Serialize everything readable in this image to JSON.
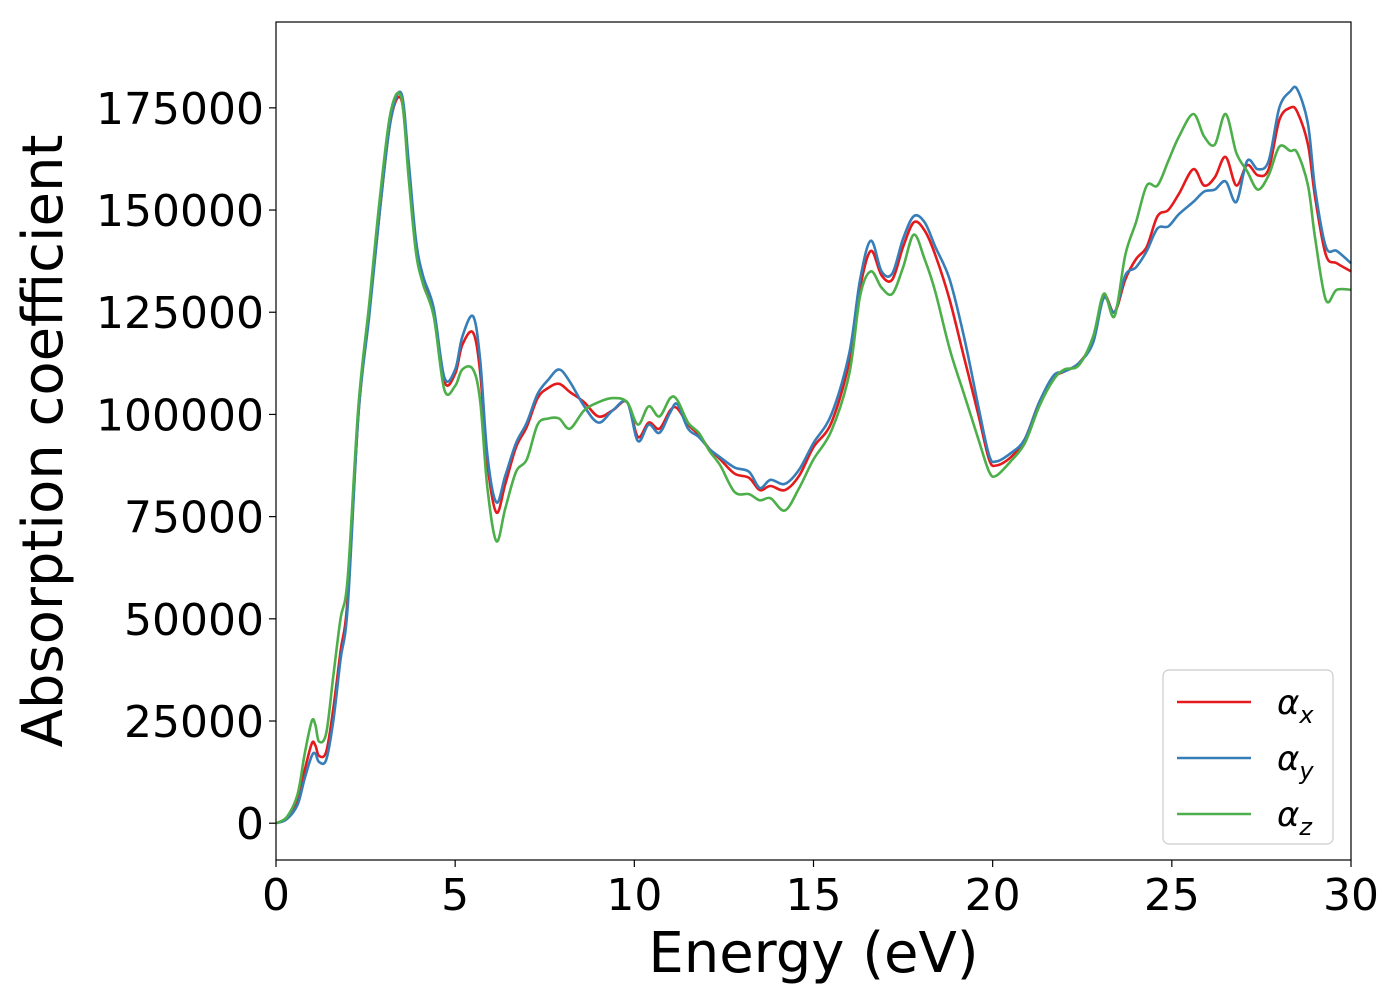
{
  "chart_data": {
    "type": "line",
    "title": "",
    "xlabel": "Energy (eV)",
    "ylabel": "Absorption coefficient",
    "xlim": [
      0,
      30
    ],
    "ylim": [
      -9000,
      196000
    ],
    "xticks": [
      0,
      5,
      10,
      15,
      20,
      25,
      30
    ],
    "yticks": [
      0,
      25000,
      50000,
      75000,
      100000,
      125000,
      150000,
      175000
    ],
    "grid": false,
    "legend_position": "lower-right",
    "series": [
      {
        "name": "α",
        "subscript": "x",
        "color": "#e41a1c",
        "x": [
          0,
          0.3,
          0.6,
          0.8,
          1.0,
          1.1,
          1.2,
          1.4,
          1.6,
          1.8,
          2.0,
          2.3,
          2.6,
          2.9,
          3.2,
          3.5,
          3.7,
          3.9,
          4.1,
          4.4,
          4.7,
          5.0,
          5.2,
          5.5,
          5.7,
          5.9,
          6.15,
          6.4,
          6.7,
          7.0,
          7.3,
          7.6,
          7.9,
          8.2,
          8.6,
          9.0,
          9.4,
          9.8,
          10.1,
          10.4,
          10.7,
          11.0,
          11.2,
          11.5,
          11.8,
          12.1,
          12.4,
          12.8,
          13.2,
          13.5,
          13.8,
          14.2,
          14.6,
          15.0,
          15.5,
          16.0,
          16.3,
          16.6,
          16.9,
          17.2,
          17.5,
          17.8,
          18.1,
          18.4,
          18.8,
          19.2,
          19.6,
          19.9,
          20.1,
          20.5,
          20.9,
          21.3,
          21.7,
          22.0,
          22.4,
          22.8,
          23.1,
          23.4,
          23.7,
          24.0,
          24.3,
          24.6,
          24.9,
          25.2,
          25.6,
          25.9,
          26.2,
          26.5,
          26.8,
          27.1,
          27.4,
          27.7,
          28.0,
          28.3,
          28.5,
          28.8,
          29.0,
          29.3,
          29.6,
          30.0
        ],
        "y": [
          0,
          1200,
          5500,
          13000,
          19500,
          19000,
          16500,
          17500,
          28000,
          42000,
          55000,
          100000,
          125000,
          150000,
          172000,
          177000,
          160000,
          142000,
          133000,
          125000,
          108000,
          110000,
          117000,
          120000,
          110000,
          88000,
          76000,
          83000,
          92000,
          97000,
          104000,
          106500,
          107500,
          105500,
          103000,
          99500,
          101000,
          103000,
          94500,
          98000,
          96500,
          101000,
          101500,
          97500,
          95000,
          91500,
          89000,
          85500,
          84500,
          81500,
          82500,
          81500,
          85000,
          92000,
          98000,
          113000,
          131000,
          140000,
          134000,
          133000,
          141000,
          147000,
          145000,
          139000,
          128000,
          114000,
          100000,
          89000,
          87500,
          89500,
          94000,
          103000,
          109000,
          110500,
          112500,
          118000,
          129000,
          125000,
          133000,
          138000,
          141000,
          148500,
          150000,
          154000,
          160000,
          156000,
          158000,
          163000,
          156000,
          161000,
          158500,
          160000,
          172000,
          175000,
          174000,
          166000,
          153000,
          139000,
          137000,
          135000
        ]
      },
      {
        "name": "α",
        "subscript": "y",
        "color": "#377eb8",
        "x": [
          0,
          0.3,
          0.6,
          0.8,
          1.0,
          1.1,
          1.2,
          1.4,
          1.6,
          1.8,
          2.0,
          2.3,
          2.6,
          2.9,
          3.2,
          3.5,
          3.7,
          3.9,
          4.1,
          4.4,
          4.7,
          5.0,
          5.2,
          5.5,
          5.7,
          5.9,
          6.15,
          6.4,
          6.7,
          7.0,
          7.3,
          7.6,
          7.9,
          8.2,
          8.6,
          9.0,
          9.4,
          9.8,
          10.1,
          10.4,
          10.7,
          11.0,
          11.2,
          11.5,
          11.8,
          12.1,
          12.4,
          12.8,
          13.2,
          13.5,
          13.8,
          14.2,
          14.6,
          15.0,
          15.5,
          16.0,
          16.3,
          16.6,
          16.9,
          17.2,
          17.5,
          17.8,
          18.1,
          18.4,
          18.8,
          19.2,
          19.6,
          19.9,
          20.1,
          20.5,
          20.9,
          21.3,
          21.7,
          22.0,
          22.4,
          22.8,
          23.1,
          23.4,
          23.7,
          24.0,
          24.3,
          24.6,
          24.9,
          25.2,
          25.6,
          25.9,
          26.2,
          26.5,
          26.8,
          27.1,
          27.4,
          27.7,
          28.0,
          28.3,
          28.5,
          28.8,
          29.0,
          29.3,
          29.6,
          30.0
        ],
        "y": [
          0,
          1000,
          4500,
          11000,
          16500,
          17000,
          15000,
          15500,
          25000,
          40000,
          53000,
          100000,
          124000,
          150000,
          172000,
          178500,
          162000,
          143000,
          134000,
          126000,
          109000,
          111000,
          119000,
          124000,
          113000,
          90000,
          78500,
          85000,
          93000,
          98000,
          105000,
          108500,
          111000,
          108000,
          102000,
          98000,
          101000,
          103000,
          93500,
          97500,
          95500,
          100500,
          102500,
          96500,
          94500,
          91500,
          89500,
          87000,
          86000,
          82000,
          84000,
          83000,
          86500,
          93000,
          100000,
          115000,
          133000,
          142500,
          135000,
          134500,
          143000,
          148500,
          147000,
          141000,
          133000,
          119000,
          102000,
          90000,
          88500,
          90500,
          94000,
          103000,
          109500,
          110500,
          112500,
          117500,
          128500,
          125000,
          134000,
          136000,
          140000,
          145500,
          146000,
          149000,
          152000,
          154500,
          155000,
          157000,
          152000,
          162000,
          160000,
          162000,
          175000,
          179000,
          179500,
          171000,
          155000,
          141000,
          140000,
          137000
        ]
      },
      {
        "name": "α",
        "subscript": "z",
        "color": "#4daf4a",
        "x": [
          0,
          0.3,
          0.6,
          0.8,
          1.0,
          1.1,
          1.2,
          1.4,
          1.6,
          1.8,
          2.0,
          2.3,
          2.6,
          2.9,
          3.2,
          3.5,
          3.7,
          3.9,
          4.1,
          4.4,
          4.7,
          5.0,
          5.2,
          5.5,
          5.7,
          5.9,
          6.15,
          6.4,
          6.7,
          7.0,
          7.3,
          7.6,
          7.9,
          8.2,
          8.6,
          9.0,
          9.4,
          9.8,
          10.1,
          10.4,
          10.7,
          11.0,
          11.2,
          11.5,
          11.8,
          12.1,
          12.4,
          12.8,
          13.2,
          13.5,
          13.8,
          14.2,
          14.6,
          15.0,
          15.5,
          16.0,
          16.3,
          16.6,
          16.9,
          17.2,
          17.5,
          17.8,
          18.1,
          18.4,
          18.8,
          19.2,
          19.6,
          19.9,
          20.1,
          20.5,
          20.9,
          21.3,
          21.7,
          22.0,
          22.4,
          22.8,
          23.1,
          23.4,
          23.7,
          24.0,
          24.3,
          24.6,
          24.9,
          25.2,
          25.6,
          25.9,
          26.2,
          26.5,
          26.8,
          27.1,
          27.4,
          27.7,
          28.0,
          28.3,
          28.5,
          28.8,
          29.0,
          29.3,
          29.6,
          30.0
        ],
        "y": [
          0,
          1500,
          7000,
          17000,
          25000,
          24000,
          20000,
          22000,
          36000,
          50000,
          60000,
          102000,
          127000,
          153000,
          174000,
          177500,
          158000,
          140000,
          132000,
          124000,
          106000,
          107000,
          111000,
          111000,
          103000,
          82000,
          69000,
          77000,
          86000,
          89000,
          97500,
          99000,
          99000,
          96500,
          101000,
          103000,
          104000,
          103000,
          97500,
          102000,
          99500,
          104000,
          103500,
          98000,
          95500,
          91000,
          87500,
          81000,
          80500,
          79000,
          79500,
          76500,
          82000,
          89000,
          96000,
          110000,
          129000,
          135000,
          131000,
          129500,
          136000,
          144000,
          138000,
          130000,
          116000,
          105000,
          94000,
          86000,
          85000,
          88500,
          93000,
          102000,
          108500,
          111000,
          112000,
          119000,
          129500,
          124000,
          139000,
          147000,
          156000,
          156000,
          162000,
          168000,
          173500,
          168000,
          166000,
          173500,
          164000,
          159500,
          155000,
          158500,
          165500,
          164500,
          164000,
          156000,
          143000,
          128000,
          130500,
          130500
        ]
      }
    ]
  }
}
